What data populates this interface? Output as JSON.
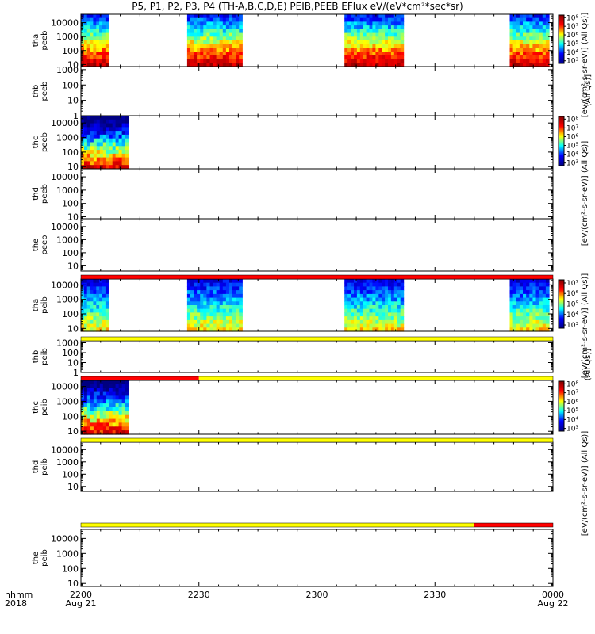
{
  "page": {
    "title": "P5, P1, P2, P3, P4 (TH-A,B,C,D,E) PEIB,PEEB EFlux eV/(eV*cm²*sec*sr)"
  },
  "chart_data": {
    "type": "heatmap",
    "x_range": [
      "2200",
      "0000"
    ],
    "x_ticks": [
      {
        "value": "2200",
        "date": "Aug 21"
      },
      {
        "value": "2230",
        "date": ""
      },
      {
        "value": "2300",
        "date": ""
      },
      {
        "value": "2330",
        "date": ""
      },
      {
        "value": "0000",
        "date": "Aug 22"
      }
    ],
    "x_axis_label": {
      "format": "hhmm",
      "year": "2018"
    },
    "panels": [
      {
        "probe": "tha",
        "product": "peeb",
        "ticks": [
          "10000",
          "1000",
          "100",
          "10"
        ],
        "ylog_min": 0.85,
        "ylog_max": 4.6,
        "segments": [
          [
            "2200",
            "2207"
          ],
          [
            "2227",
            "2241"
          ],
          [
            "2307",
            "2322"
          ],
          [
            "2349",
            "2359"
          ]
        ]
      },
      {
        "probe": "thb",
        "product": "peeb",
        "ticks": [
          "1000",
          "100",
          "10",
          "1"
        ],
        "ylog_min": 0,
        "ylog_max": 3.2,
        "segments": []
      },
      {
        "probe": "thc",
        "product": "peeb",
        "ticks": [
          "10000",
          "1000",
          "100",
          "10"
        ],
        "ylog_min": 0.85,
        "ylog_max": 4.5,
        "segments": [
          [
            "2200",
            "2212"
          ]
        ]
      },
      {
        "probe": "thd",
        "product": "peeb",
        "ticks": [
          "10000",
          "1000",
          "100",
          "10"
        ],
        "ylog_min": 0.85,
        "ylog_max": 4.6,
        "segments": []
      },
      {
        "probe": "the",
        "product": "peeb",
        "ticks": [
          "10000",
          "1000",
          "100",
          "10"
        ],
        "ylog_min": 0.6,
        "ylog_max": 4.6,
        "segments": []
      },
      {
        "probe": "tha",
        "product": "peib",
        "ticks": [
          "10000",
          "1000",
          "100",
          "10"
        ],
        "ylog_min": 0.8,
        "ylog_max": 4.4,
        "segments": [
          [
            "2200",
            "2207"
          ],
          [
            "2227",
            "2241"
          ],
          [
            "2307",
            "2322"
          ],
          [
            "2349",
            "2359"
          ]
        ]
      },
      {
        "probe": "thb",
        "product": "peib",
        "ticks": [
          "1000",
          "100",
          "10",
          "1"
        ],
        "ylog_min": 0,
        "ylog_max": 3.2,
        "segments": []
      },
      {
        "probe": "thc",
        "product": "peib",
        "ticks": [
          "10000",
          "1000",
          "100",
          "10"
        ],
        "ylog_min": 0.8,
        "ylog_max": 4.4,
        "segments": [
          [
            "2200",
            "2212"
          ]
        ]
      },
      {
        "probe": "thd",
        "product": "peib",
        "ticks": [
          "10000",
          "1000",
          "100",
          "10"
        ],
        "ylog_min": 0.6,
        "ylog_max": 4.6,
        "segments": []
      },
      {
        "probe": "the",
        "product": "peib",
        "ticks": [
          "10000",
          "1000",
          "100",
          "10"
        ],
        "ylog_min": 0.8,
        "ylog_max": 4.6,
        "segments": []
      }
    ],
    "status_bars": [
      {
        "after_panel": 4,
        "parts": [
          {
            "from": "2200",
            "to": "0000",
            "color": "#ff0000"
          }
        ]
      },
      {
        "after_panel": 5,
        "parts": [
          {
            "from": "2200",
            "to": "0000",
            "color": "#ffff00"
          }
        ]
      },
      {
        "after_panel": 6,
        "parts": [
          {
            "from": "2200",
            "to": "2230",
            "color": "#ff0000"
          },
          {
            "from": "2230",
            "to": "0000",
            "color": "#ffff00"
          }
        ]
      },
      {
        "after_panel": 7,
        "parts": [
          {
            "from": "2200",
            "to": "0000",
            "color": "#ffff00"
          }
        ]
      },
      {
        "after_panel": 8,
        "parts": [
          {
            "from": "2200",
            "to": "2340",
            "color": "#ffff00"
          },
          {
            "from": "2340",
            "to": "0000",
            "color": "#ff0000"
          }
        ]
      }
    ],
    "colorbars": [
      {
        "top_panel": 0,
        "span": 2,
        "ticks": [
          "10⁸",
          "10⁷",
          "10⁶",
          "10⁵",
          "10⁴",
          "10³"
        ],
        "label": "[eV/(cm²-s-sr-eV)] (All Qs)]",
        "overlap_label": "(All Qs)]"
      },
      {
        "top_panel": 2,
        "span": 3,
        "ticks": [
          "10⁸",
          "10⁷",
          "10⁶",
          "10⁵",
          "10⁴",
          "10³"
        ],
        "label": "[eV/(cm²-s-sr-eV)] (All Qs)]"
      },
      {
        "top_panel": 5,
        "span": 2,
        "ticks": [
          "10⁷",
          "10⁶",
          "10⁵",
          "10⁴",
          "10³"
        ],
        "label": "[eV/(cm²-s-sr-eV)] (All Qs)]",
        "overlap_label": "(All Qs)]"
      },
      {
        "top_panel": 7,
        "span": 3,
        "ticks": [
          "10⁸",
          "10⁷",
          "10⁶",
          "10⁵",
          "10⁴",
          "10³"
        ],
        "label": "[eV/(cm²-s-sr-eV)] (All Qs)]"
      }
    ]
  },
  "colors": {
    "axis": "#000000",
    "jet": [
      "#000080",
      "#0000ff",
      "#00ffff",
      "#ffff00",
      "#ff0000",
      "#800000"
    ]
  }
}
